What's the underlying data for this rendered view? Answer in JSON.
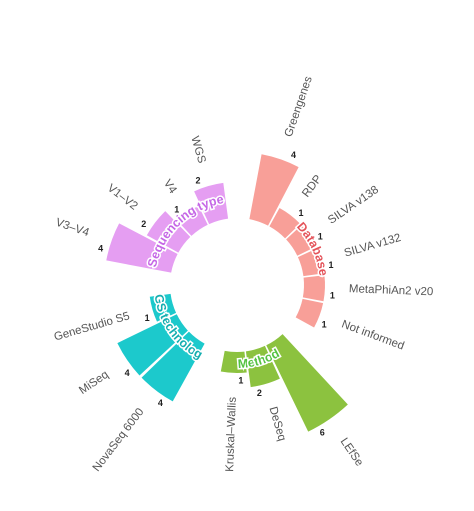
{
  "chart_data": {
    "type": "bar",
    "subtype": "circular",
    "groups": [
      {
        "name": "Database",
        "color": "#f89f98",
        "categories": [
          {
            "label": "Greengenes",
            "value": 4
          },
          {
            "label": "RDP",
            "value": 1
          },
          {
            "label": "SILVA v138",
            "value": 1
          },
          {
            "label": "SILVA v132",
            "value": 1
          },
          {
            "label": "MetaPhiAn2 v20",
            "value": 1
          },
          {
            "label": "Not informed",
            "value": 1
          }
        ]
      },
      {
        "name": "Method",
        "color": "#8cc23f",
        "categories": [
          {
            "label": "LEfSe",
            "value": 6
          },
          {
            "label": "DeSeq",
            "value": 2
          },
          {
            "label": "Kruskal–Wallis",
            "value": 1
          }
        ]
      },
      {
        "name": "NGS technology",
        "color": "#1cc9cc",
        "categories": [
          {
            "label": "NovaSeq 6000",
            "value": 4
          },
          {
            "label": "MiSeq",
            "value": 4
          },
          {
            "label": "GeneStudio S5",
            "value": 1
          }
        ]
      },
      {
        "name": "Sequencing type",
        "color": "#e59ef2",
        "categories": [
          {
            "label": "V3–V4",
            "value": 4
          },
          {
            "label": "V1–V2",
            "value": 2
          },
          {
            "label": "V4",
            "value": 1
          },
          {
            "label": "WGS",
            "value": 2
          }
        ]
      }
    ],
    "group_label_colors": {
      "Database": "#e4535a",
      "Method": "#55c241",
      "NGS technology": "#14aeb0",
      "Sequencing type": "#c567e6"
    },
    "grid": false,
    "legend": "none"
  }
}
